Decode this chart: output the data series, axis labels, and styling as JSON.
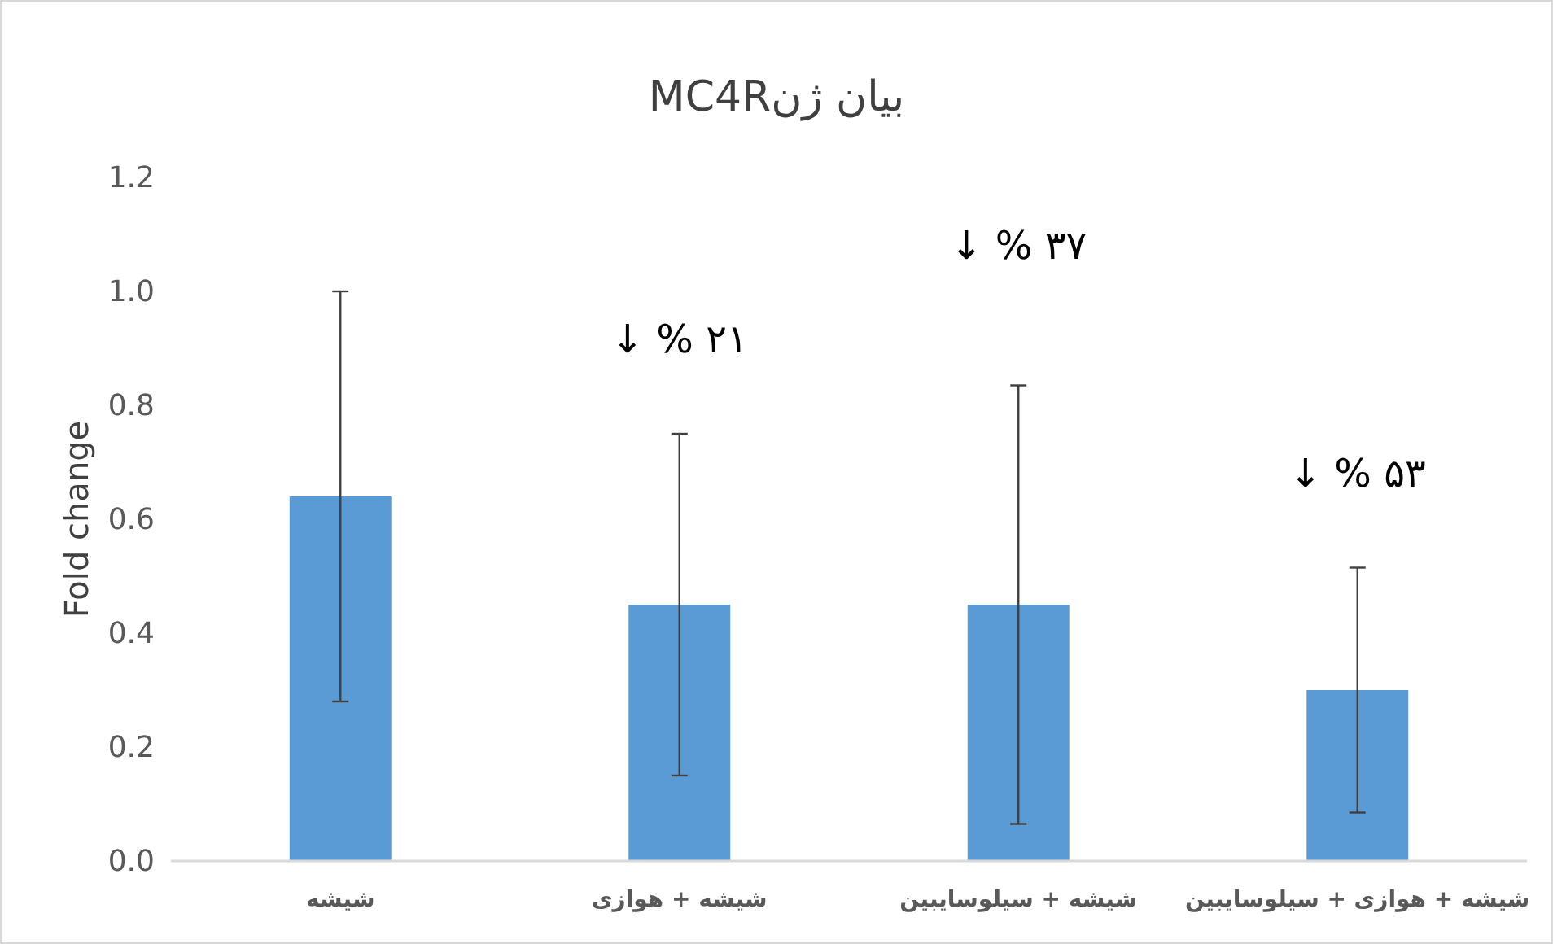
{
  "chart_data": {
    "type": "bar",
    "title": "بیان ژنMC4R",
    "ylabel": "Fold change",
    "categories": [
      "شیشه",
      "شیشه + هوازی",
      "شیشه + سیلوسایبین",
      "شیشه + هوازی + سیلوسایبین"
    ],
    "values": [
      0.64,
      0.45,
      0.45,
      0.3
    ],
    "errors": [
      0.36,
      0.3,
      0.385,
      0.215
    ],
    "color": "#5b9bd5",
    "ylim": [
      0,
      1.2
    ],
    "yticks": [
      {
        "value": 0,
        "label": "0.0"
      },
      0.2,
      0.4,
      0.6,
      0.8,
      {
        "value": 1,
        "label": "1.0"
      },
      1.2
    ],
    "annotations": [
      "↓ % ۲۱",
      "↓ % ۳۷",
      "↓ % ۵۳"
    ],
    "grid": false
  }
}
